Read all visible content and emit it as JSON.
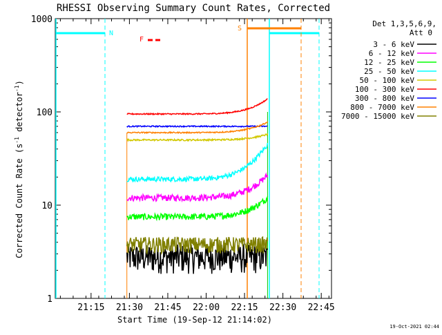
{
  "chart_data": {
    "type": "line",
    "title": "RHESSI Observing Summary Count Rates, Corrected",
    "xlabel": "Start Time (19-Sep-12 21:14:02)",
    "ylabel_main": "Corrected Count Rate (s",
    "ylabel_sup1": "-1",
    "ylabel_mid": " detector",
    "ylabel_sup2": "-1",
    "ylabel_end": ")",
    "yscale": "log",
    "ylim": [
      1,
      1000
    ],
    "xlim_minutes": [
      -14,
      94
    ],
    "x_tick_labels": [
      "21:15",
      "21:30",
      "21:45",
      "22:00",
      "22:15",
      "22:30",
      "22:45"
    ],
    "x_tick_minutes": [
      0,
      15,
      30,
      45,
      60,
      75,
      90
    ],
    "y_tick_labels": [
      "1",
      "10",
      "100",
      "1000"
    ],
    "y_tick_values": [
      1,
      10,
      100,
      1000
    ],
    "legend_header": [
      "Det 1,3,5,6,9,",
      "Att 0"
    ],
    "legend_position": "right",
    "series": [
      {
        "name": "3 - 6 keV",
        "color": "#000000",
        "level": 2.8,
        "noise": 0.35,
        "flare": 0.0
      },
      {
        "name": "6 - 12 keV",
        "color": "#ff00ff",
        "level": 12.0,
        "noise": 0.08,
        "flare": 0.25
      },
      {
        "name": "12 - 25 keV",
        "color": "#00ff00",
        "level": 7.5,
        "noise": 0.08,
        "flare": 0.2
      },
      {
        "name": "25 - 50 keV",
        "color": "#00ffff",
        "level": 19.0,
        "noise": 0.06,
        "flare": 0.45
      },
      {
        "name": "50 - 100 keV",
        "color": "#d2c800",
        "level": 50.0,
        "noise": 0.02,
        "flare": 0.05
      },
      {
        "name": "100 - 300 keV",
        "color": "#ff0000",
        "level": 95.0,
        "noise": 0.015,
        "flare": 0.15
      },
      {
        "name": "300 - 800 keV",
        "color": "#0000ff",
        "level": 70.0,
        "noise": 0.015,
        "flare": 0.0
      },
      {
        "name": "800 - 7000 keV",
        "color": "#ff8000",
        "level": 60.0,
        "noise": 0.015,
        "flare": 0.1
      },
      {
        "name": "7000 - 15000 keV",
        "color": "#808000",
        "level": 3.8,
        "noise": 0.2,
        "flare": 0.0
      }
    ],
    "data_start_minute": 14,
    "data_end_minute": 69,
    "markers": {
      "night_label": "N",
      "flare_label": "F",
      "saa_label": "S",
      "night_color": "#00ffff",
      "saa_color": "#ff8000",
      "flare_color": "#ff0000"
    }
  },
  "footer": {
    "timestamp": "19-Oct-2021 02:44"
  },
  "colors": {
    "background": "#ffffff",
    "axis": "#000000"
  }
}
